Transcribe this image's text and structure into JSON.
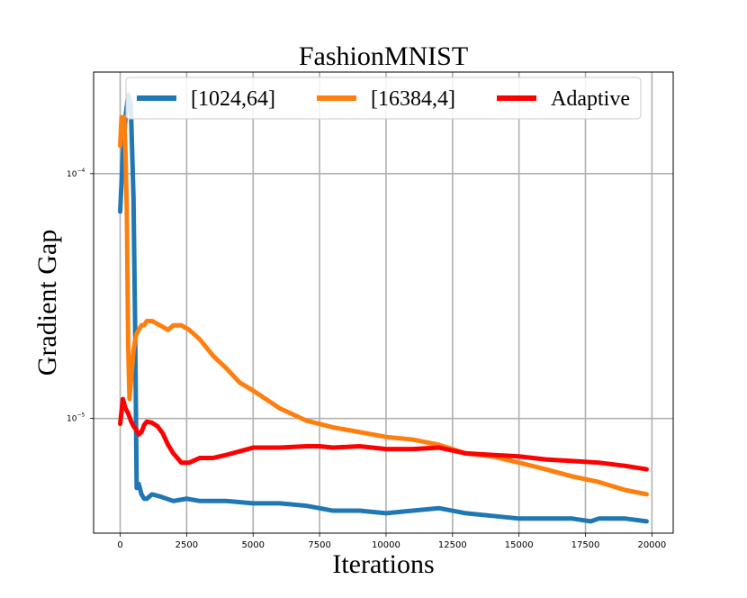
{
  "chart_data": {
    "type": "line",
    "title": "FashionMNIST",
    "xlabel": "Iterations",
    "ylabel": "Gradient Gap",
    "yscale": "log",
    "xlim": [
      -1000,
      20800
    ],
    "ylim": [
      3.4e-06,
      0.00026
    ],
    "x_ticks": [
      0,
      2500,
      5000,
      7500,
      10000,
      12500,
      15000,
      17500,
      20000
    ],
    "x_tick_labels": [
      "0",
      "2500",
      "5000",
      "7500",
      "10000",
      "12500",
      "15000",
      "17500",
      "20000"
    ],
    "y_ticks": [
      0.0001,
      1e-05
    ],
    "y_tick_labels": {
      "t1": {
        "base": "10",
        "exp": "−4"
      },
      "t2": {
        "base": "10",
        "exp": "−5"
      }
    },
    "grid": true,
    "legend_position": "top",
    "series": [
      {
        "name": "[1024,64]",
        "color": "#1f77b4",
        "x": [
          0,
          100,
          200,
          300,
          400,
          500,
          560,
          620,
          700,
          800,
          900,
          1000,
          1200,
          1500,
          2000,
          2500,
          3000,
          4000,
          5000,
          6000,
          7000,
          7500,
          8000,
          9000,
          10000,
          11000,
          12000,
          13000,
          14000,
          15000,
          16000,
          17000,
          17700,
          18000,
          19000,
          19800
        ],
        "values": [
          7e-05,
          0.00012,
          0.00017,
          0.00021,
          0.00019,
          8e-05,
          2.5e-05,
          5.2e-06,
          5.4e-06,
          4.9e-06,
          4.7e-06,
          4.7e-06,
          4.9e-06,
          4.8e-06,
          4.6e-06,
          4.7e-06,
          4.6e-06,
          4.6e-06,
          4.5e-06,
          4.5e-06,
          4.4e-06,
          4.3e-06,
          4.2e-06,
          4.2e-06,
          4.1e-06,
          4.2e-06,
          4.3e-06,
          4.1e-06,
          4e-06,
          3.9e-06,
          3.9e-06,
          3.9e-06,
          3.8e-06,
          3.9e-06,
          3.9e-06,
          3.8e-06
        ]
      },
      {
        "name": "[16384,4]",
        "color": "#ff7f0e",
        "x": [
          0,
          50,
          100,
          150,
          200,
          250,
          300,
          350,
          400,
          500,
          600,
          700,
          800,
          900,
          1000,
          1200,
          1500,
          1800,
          2000,
          2300,
          2600,
          3000,
          3500,
          4000,
          4500,
          5000,
          6000,
          7000,
          8000,
          9000,
          10000,
          11000,
          12000,
          13000,
          14000,
          15000,
          16000,
          17000,
          18000,
          19000,
          19800
        ],
        "values": [
          0.00013,
          0.00017,
          0.00015,
          0.00017,
          0.00012,
          7e-05,
          2e-05,
          1.2e-05,
          1.4e-05,
          1.9e-05,
          2.2e-05,
          2.3e-05,
          2.4e-05,
          2.4e-05,
          2.5e-05,
          2.5e-05,
          2.4e-05,
          2.3e-05,
          2.4e-05,
          2.4e-05,
          2.3e-05,
          2.1e-05,
          1.8e-05,
          1.6e-05,
          1.4e-05,
          1.3e-05,
          1.1e-05,
          9.8e-06,
          9.2e-06,
          8.8e-06,
          8.4e-06,
          8.2e-06,
          7.8e-06,
          7.2e-06,
          7e-06,
          6.6e-06,
          6.2e-06,
          5.8e-06,
          5.5e-06,
          5.1e-06,
          4.9e-06
        ]
      },
      {
        "name": "Adaptive",
        "color": "#ff0000",
        "x": [
          0,
          100,
          200,
          300,
          400,
          500,
          600,
          700,
          800,
          900,
          1000,
          1200,
          1400,
          1600,
          1800,
          2000,
          2300,
          2600,
          3000,
          3500,
          4000,
          5000,
          6000,
          7000,
          7500,
          8000,
          9000,
          10000,
          11000,
          12000,
          13000,
          14000,
          15000,
          16000,
          17000,
          18000,
          19000,
          19800
        ],
        "values": [
          9.5e-06,
          1.2e-05,
          1.1e-05,
          1.05e-05,
          9.8e-06,
          9.3e-06,
          9e-06,
          8.6e-06,
          8.8e-06,
          9.4e-06,
          9.7e-06,
          9.6e-06,
          9.3e-06,
          8.7e-06,
          7.8e-06,
          7.2e-06,
          6.6e-06,
          6.6e-06,
          6.9e-06,
          6.9e-06,
          7.1e-06,
          7.6e-06,
          7.6e-06,
          7.7e-06,
          7.7e-06,
          7.6e-06,
          7.7e-06,
          7.5e-06,
          7.5e-06,
          7.6e-06,
          7.2e-06,
          7.1e-06,
          7e-06,
          6.8e-06,
          6.7e-06,
          6.6e-06,
          6.4e-06,
          6.2e-06
        ]
      }
    ]
  }
}
